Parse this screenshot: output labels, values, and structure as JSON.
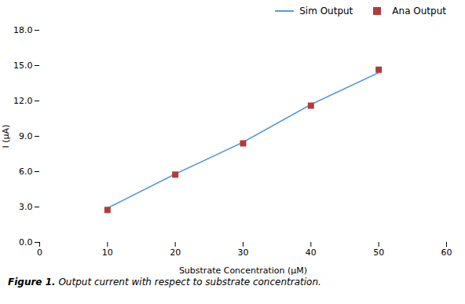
{
  "chart_data": {
    "type": "line",
    "x": [
      10,
      20,
      30,
      40,
      50
    ],
    "series": [
      {
        "name": "Sim Output",
        "type": "line",
        "color": "#5B9BD5",
        "values": [
          2.9,
          5.8,
          8.5,
          11.7,
          14.4
        ]
      },
      {
        "name": "Ana Output",
        "type": "scatter",
        "marker": "square",
        "color": "#B33B3B",
        "values": [
          2.75,
          5.75,
          8.4,
          11.6,
          14.65
        ]
      }
    ],
    "xlabel": "Substrate Concentration (μM)",
    "ylabel": "I (μA)",
    "xlim": [
      0,
      60
    ],
    "ylim": [
      0.0,
      18.0
    ],
    "xticks": [
      0,
      10,
      20,
      30,
      40,
      50,
      60
    ],
    "yticks": [
      {
        "value": 0,
        "label": "0.0"
      },
      {
        "value": 3,
        "label": "3.0"
      },
      {
        "value": 6,
        "label": "6.0"
      },
      {
        "value": 9,
        "label": "9.0"
      },
      {
        "value": 12,
        "label": "12.0"
      },
      {
        "value": 15,
        "label": "15.0"
      },
      {
        "value": 18,
        "label": "18.0"
      }
    ],
    "grid": false,
    "legend": "upper right",
    "caption": "Figure 1. Output current with respect to substrate concentration."
  }
}
